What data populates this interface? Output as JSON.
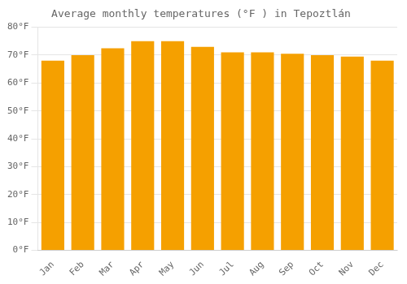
{
  "chart_data": {
    "type": "bar",
    "title": "Average monthly temperatures (°F ) in Tepoztlán",
    "categories": [
      "Jan",
      "Feb",
      "Mar",
      "Apr",
      "May",
      "Jun",
      "Jul",
      "Aug",
      "Sep",
      "Oct",
      "Nov",
      "Dec"
    ],
    "values": [
      68,
      70,
      72.5,
      75,
      75,
      73,
      71,
      71,
      70.5,
      70,
      69.5,
      68
    ],
    "color": "#F5A000",
    "ylim": [
      0,
      80
    ],
    "yticks": [
      {
        "value": 0,
        "label": "0°F"
      },
      {
        "value": 10,
        "label": "10°F"
      },
      {
        "value": 20,
        "label": "20°F"
      },
      {
        "value": 30,
        "label": "30°F"
      },
      {
        "value": 40,
        "label": "40°F"
      },
      {
        "value": 50,
        "label": "50°F"
      },
      {
        "value": 60,
        "label": "60°F"
      },
      {
        "value": 70,
        "label": "70°F"
      },
      {
        "value": 80,
        "label": "80°F"
      }
    ],
    "grid": true
  }
}
